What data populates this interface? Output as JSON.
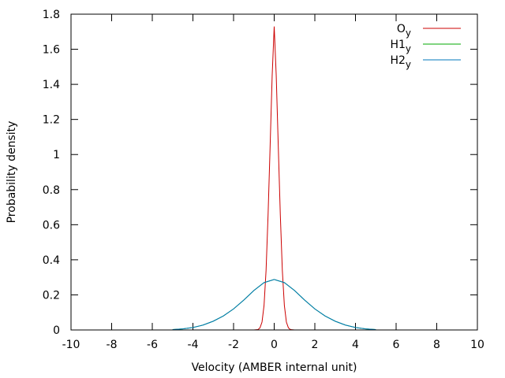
{
  "chart_data": {
    "type": "line",
    "title": "",
    "xlabel": "Velocity (AMBER internal unit)",
    "ylabel": "Probability density",
    "xlim": [
      -10,
      10
    ],
    "ylim": [
      0,
      1.8
    ],
    "xticks": [
      -10,
      -8,
      -6,
      -4,
      -2,
      0,
      2,
      4,
      6,
      8,
      10
    ],
    "yticks": [
      0,
      0.2,
      0.4,
      0.6,
      0.8,
      1,
      1.2,
      1.4,
      1.6,
      1.8
    ],
    "grid": false,
    "legend_position": "top-right",
    "series": [
      {
        "name": "O",
        "name_subscript": "y",
        "color": "#cc0000",
        "x": [
          -1.0,
          -0.8,
          -0.7,
          -0.6,
          -0.5,
          -0.4,
          -0.3,
          -0.2,
          -0.1,
          0.0,
          0.1,
          0.2,
          0.3,
          0.4,
          0.5,
          0.6,
          0.7,
          0.8,
          1.0
        ],
        "y": [
          0.0,
          0.002,
          0.012,
          0.045,
          0.14,
          0.34,
          0.66,
          1.05,
          1.45,
          1.73,
          1.45,
          1.05,
          0.66,
          0.34,
          0.14,
          0.045,
          0.012,
          0.002,
          0.0
        ]
      },
      {
        "name": "H1",
        "name_subscript": "y",
        "color": "#00aa00",
        "x": [
          -5.0,
          -4.5,
          -4.0,
          -3.5,
          -3.0,
          -2.5,
          -2.0,
          -1.5,
          -1.0,
          -0.5,
          0.0,
          0.5,
          1.0,
          1.5,
          2.0,
          2.5,
          3.0,
          3.5,
          4.0,
          4.5,
          5.0
        ],
        "y": [
          0.002,
          0.006,
          0.014,
          0.028,
          0.05,
          0.08,
          0.12,
          0.17,
          0.225,
          0.27,
          0.288,
          0.27,
          0.225,
          0.17,
          0.12,
          0.08,
          0.05,
          0.028,
          0.014,
          0.006,
          0.002
        ]
      },
      {
        "name": "H2",
        "name_subscript": "y",
        "color": "#0077bb",
        "x": [
          -5.0,
          -4.5,
          -4.0,
          -3.5,
          -3.0,
          -2.5,
          -2.0,
          -1.5,
          -1.0,
          -0.5,
          0.0,
          0.5,
          1.0,
          1.5,
          2.0,
          2.5,
          3.0,
          3.5,
          4.0,
          4.5,
          5.0
        ],
        "y": [
          0.002,
          0.006,
          0.014,
          0.028,
          0.05,
          0.08,
          0.12,
          0.17,
          0.225,
          0.27,
          0.288,
          0.27,
          0.225,
          0.17,
          0.12,
          0.08,
          0.05,
          0.028,
          0.014,
          0.006,
          0.002
        ]
      }
    ]
  }
}
